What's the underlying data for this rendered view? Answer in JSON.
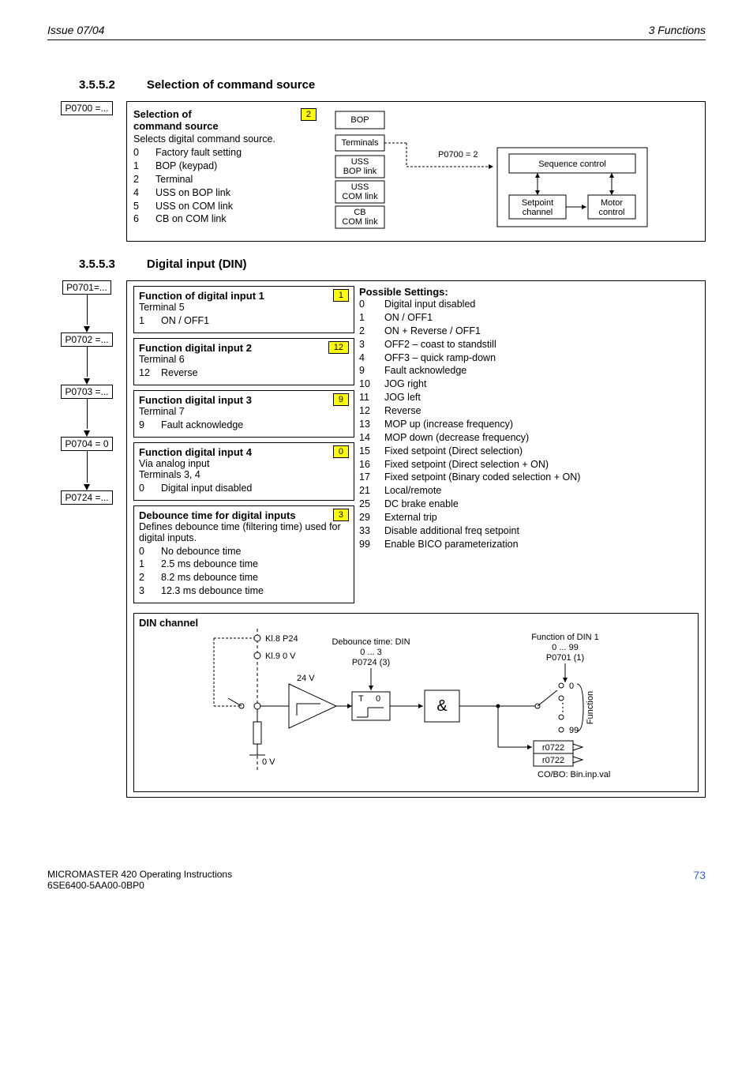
{
  "header": {
    "left": "Issue 07/04",
    "right": "3 Functions"
  },
  "section1": {
    "number": "3.5.5.2",
    "title": "Selection of command source",
    "param": "P0700 =...",
    "box_title": "Selection of\ncommand source",
    "box_sub": "Selects digital command source.",
    "badge": "2",
    "options": [
      {
        "n": "0",
        "t": "Factory fault setting"
      },
      {
        "n": "1",
        "t": "BOP (keypad)"
      },
      {
        "n": "2",
        "t": "Terminal"
      },
      {
        "n": "4",
        "t": "USS on BOP link"
      },
      {
        "n": "5",
        "t": "USS on COM link"
      },
      {
        "n": "6",
        "t": "CB on COM link"
      }
    ],
    "diagram": {
      "nodes": [
        "BOP",
        "Terminals",
        "USS\nBOP link",
        "USS\nCOM link",
        "CB\nCOM link"
      ],
      "arrow_label": "P0700 = 2",
      "right_nodes": [
        "Sequence control",
        "Setpoint\nchannel",
        "Motor\ncontrol"
      ]
    }
  },
  "section2": {
    "number": "3.5.5.3",
    "title": "Digital input (DIN)",
    "params": [
      "P0701=...",
      "P0702 =...",
      "P0703 =...",
      "P0704 = 0",
      "P0724 =..."
    ],
    "boxes": [
      {
        "title": "Function of digital input 1",
        "sub": "Terminal 5",
        "opts": [
          {
            "n": "1",
            "t": "ON / OFF1"
          }
        ],
        "badge": "1"
      },
      {
        "title": "Function digital input 2",
        "sub": "Terminal 6",
        "opts": [
          {
            "n": "12",
            "t": "Reverse"
          }
        ],
        "badge": "12"
      },
      {
        "title": "Function digital input 3",
        "sub": "Terminal 7",
        "opts": [
          {
            "n": "9",
            "t": "Fault acknowledge"
          }
        ],
        "badge": "9"
      },
      {
        "title": "Function digital input 4",
        "sub": "Via analog input\nTerminals 3, 4",
        "opts": [
          {
            "n": "0",
            "t": "Digital input disabled"
          }
        ],
        "badge": "0"
      },
      {
        "title": "Debounce time for digital inputs",
        "sub": "Defines debounce time (filtering time) used for digital inputs.",
        "opts": [
          {
            "n": "0",
            "t": "No debounce time"
          },
          {
            "n": "1",
            "t": "2.5 ms debounce time"
          },
          {
            "n": "2",
            "t": "8.2 ms debounce time"
          },
          {
            "n": "3",
            "t": "12.3 ms debounce time"
          }
        ],
        "badge": "3"
      }
    ],
    "settings_title": "Possible Settings:",
    "settings": [
      {
        "n": "0",
        "t": "Digital input disabled"
      },
      {
        "n": "1",
        "t": "ON / OFF1"
      },
      {
        "n": "2",
        "t": "ON + Reverse / OFF1"
      },
      {
        "n": "3",
        "t": "OFF2 – coast to standstill"
      },
      {
        "n": "4",
        "t": "OFF3 – quick ramp-down"
      },
      {
        "n": "9",
        "t": "Fault acknowledge"
      },
      {
        "n": "10",
        "t": "JOG right"
      },
      {
        "n": "11",
        "t": "JOG left"
      },
      {
        "n": "12",
        "t": "Reverse"
      },
      {
        "n": "13",
        "t": "MOP up (increase frequency)"
      },
      {
        "n": "14",
        "t": "MOP down (decrease frequency)"
      },
      {
        "n": "15",
        "t": "Fixed setpoint (Direct selection)"
      },
      {
        "n": "16",
        "t": "Fixed setpoint (Direct selection + ON)"
      },
      {
        "n": "17",
        "t": "Fixed setpoint (Binary coded selection + ON)"
      },
      {
        "n": "21",
        "t": "Local/remote"
      },
      {
        "n": "25",
        "t": "DC brake enable"
      },
      {
        "n": "29",
        "t": "External trip"
      },
      {
        "n": "33",
        "t": "Disable additional freq setpoint"
      },
      {
        "n": "99",
        "t": "Enable BICO parameterization"
      }
    ],
    "din_diagram": {
      "title": "DIN channel",
      "kl8": "Kl.8  P24",
      "kl9": "Kl.9  0 V",
      "v24": "24 V",
      "v0": "0 V",
      "deb_title": "Debounce time: DIN",
      "deb_range": "0 ... 3",
      "deb_param": "P0724 (3)",
      "fn_title": "Function of DIN 1",
      "fn_range": "0 ... 99",
      "fn_param": "P0701 (1)",
      "t": "T",
      "zero": "0",
      "and": "&",
      "pin0": "0",
      "pin99": "99",
      "fn_label": "Function",
      "r1": "r0722",
      "r2": "r0722",
      "r3": "CO/BO: Bin.inp.val"
    }
  },
  "footer": {
    "l1": "MICROMASTER 420    Operating Instructions",
    "l2": "6SE6400-5AA00-0BP0",
    "page": "73"
  }
}
